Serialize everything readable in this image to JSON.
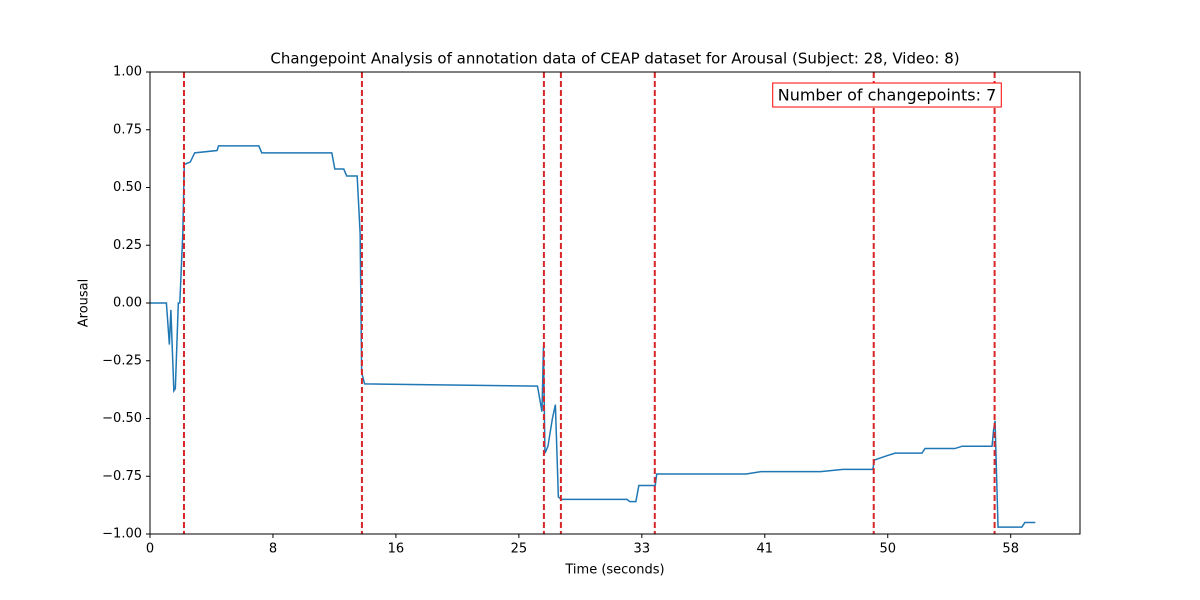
{
  "chart_data": {
    "type": "line",
    "title": "Changepoint Analysis of annotation data of CEAP dataset for Arousal (Subject: 28, Video: 8)",
    "x_label": "Time (seconds)",
    "y_label": "Arousal",
    "annotation": "Number of changepoints: 7",
    "annotation_color": "#ff0000",
    "x": [
      0,
      1.1,
      1.3,
      1.4,
      1.6,
      1.7,
      1.9,
      2.0,
      2.2,
      2.3,
      2.7,
      3.0,
      4.5,
      4.6,
      7.3,
      7.5,
      12.2,
      12.4,
      13.0,
      13.2,
      13.9,
      14.1,
      14.2,
      14.4,
      26.0,
      26.3,
      26.4,
      26.5,
      26.7,
      27.0,
      27.2,
      27.4,
      27.6,
      32.0,
      32.2,
      32.6,
      32.8,
      33.9,
      34.0,
      40.0,
      41.0,
      45.0,
      46.5,
      48.5,
      48.6,
      49.5,
      50.0,
      51.8,
      52.0,
      54.0,
      54.5,
      56.5,
      56.6,
      56.7,
      56.9,
      58.5,
      58.7,
      59.4
    ],
    "series": [
      {
        "name": "Arousal",
        "color": "#1f77b4",
        "values": [
          0,
          0,
          -0.18,
          -0.03,
          -0.38,
          -0.37,
          0,
          0,
          0.3,
          0.6,
          0.61,
          0.65,
          0.66,
          0.68,
          0.68,
          0.65,
          0.65,
          0.58,
          0.58,
          0.55,
          0.55,
          0.3,
          -0.3,
          -0.35,
          -0.36,
          -0.47,
          -0.19,
          -0.65,
          -0.62,
          -0.5,
          -0.44,
          -0.84,
          -0.85,
          -0.85,
          -0.86,
          -0.86,
          -0.79,
          -0.79,
          -0.74,
          -0.74,
          -0.73,
          -0.73,
          -0.72,
          -0.72,
          -0.68,
          -0.66,
          -0.65,
          -0.65,
          -0.63,
          -0.63,
          -0.62,
          -0.62,
          -0.55,
          -0.51,
          -0.97,
          -0.97,
          -0.95,
          -0.95
        ]
      }
    ],
    "changepoints": [
      2.28,
      14.22,
      26.43,
      27.57,
      33.87,
      48.56,
      56.67
    ],
    "changepoint_color": "#d62728",
    "xlim": [
      0,
      62.4
    ],
    "xticks": [
      0,
      {
        "value": 8.25,
        "label": "8"
      },
      {
        "value": 16.5,
        "label": "16"
      },
      {
        "value": 24.75,
        "label": "25"
      },
      33,
      {
        "value": 41.25,
        "label": "41"
      },
      {
        "value": 49.5,
        "label": "50"
      },
      {
        "value": 57.75,
        "label": "58"
      }
    ],
    "ylim": [
      -1,
      1
    ],
    "yticks": [
      {
        "value": -1,
        "label": "−1.00"
      },
      {
        "value": -0.75,
        "label": "−0.75"
      },
      {
        "value": -0.5,
        "label": "−0.50"
      },
      {
        "value": -0.25,
        "label": "−0.25"
      },
      {
        "value": 0,
        "label": "0.00"
      },
      {
        "value": 0.25,
        "label": "0.25"
      },
      {
        "value": 0.5,
        "label": "0.50"
      },
      {
        "value": 0.75,
        "label": "0.75"
      },
      {
        "value": 1,
        "label": "1.00"
      }
    ]
  }
}
